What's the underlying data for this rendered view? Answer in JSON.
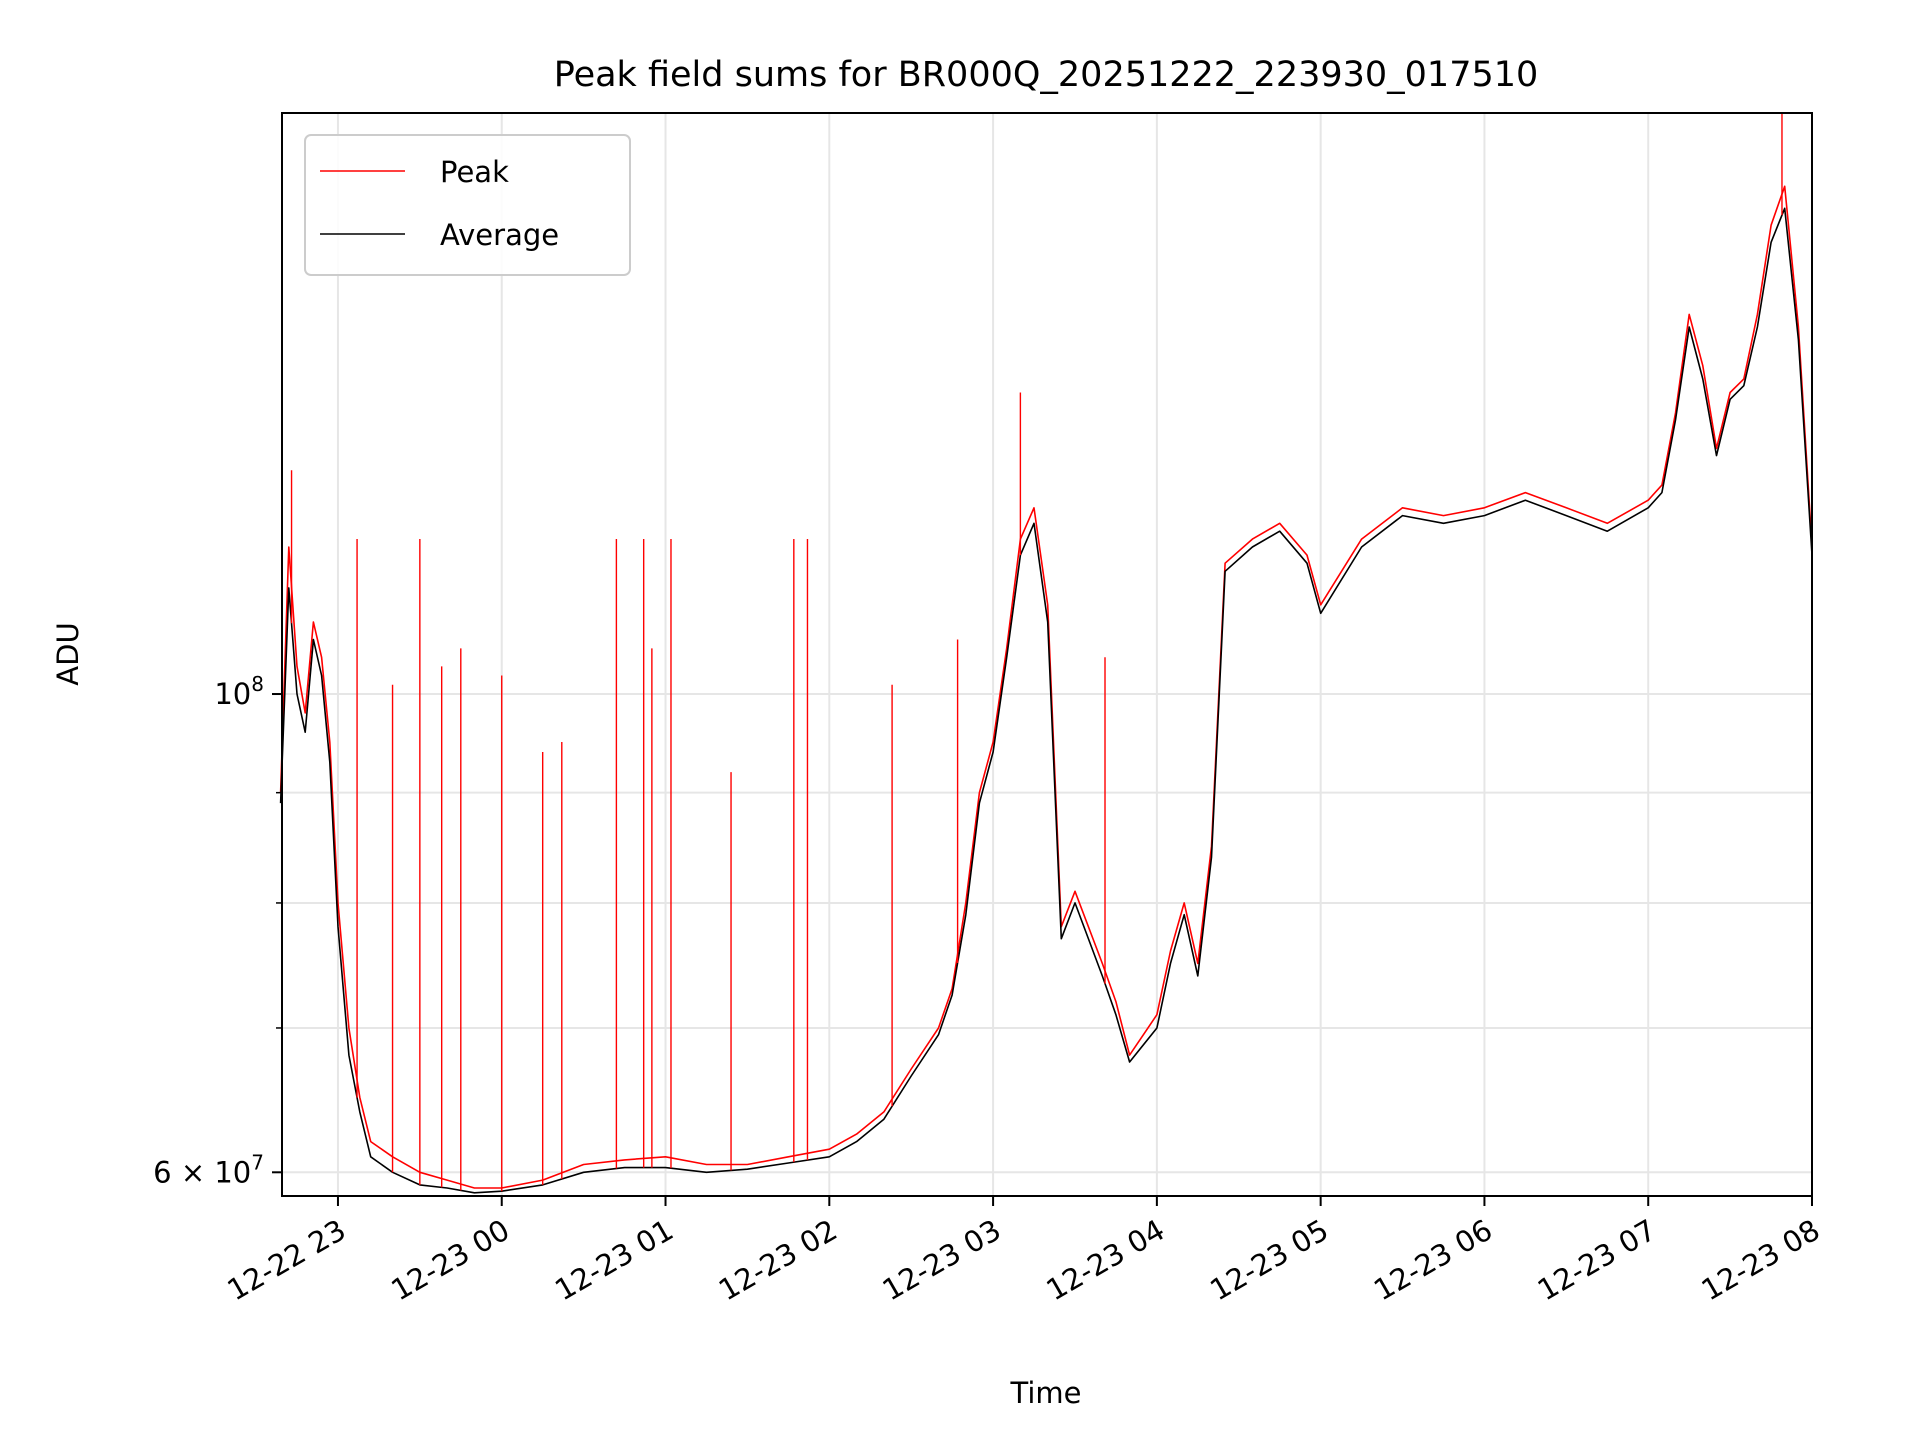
{
  "chart_data": {
    "type": "line",
    "title": "Peak field sums for BR000Q_20251222_223930_017510",
    "xlabel": "Time",
    "ylabel": "ADU",
    "y_scale": "log",
    "xlim": [
      "2025-12-22T22:39:30",
      "2025-12-23T08:00:00"
    ],
    "ylim": [
      58500000,
      186000000
    ],
    "x_ticks": [
      {
        "value": "2025-12-22T23:00",
        "label": "12-22 23"
      },
      {
        "value": "2025-12-23T00:00",
        "label": "12-23 00"
      },
      {
        "value": "2025-12-23T01:00",
        "label": "12-23 01"
      },
      {
        "value": "2025-12-23T02:00",
        "label": "12-23 02"
      },
      {
        "value": "2025-12-23T03:00",
        "label": "12-23 03"
      },
      {
        "value": "2025-12-23T04:00",
        "label": "12-23 04"
      },
      {
        "value": "2025-12-23T05:00",
        "label": "12-23 05"
      },
      {
        "value": "2025-12-23T06:00",
        "label": "12-23 06"
      },
      {
        "value": "2025-12-23T07:00",
        "label": "12-23 07"
      },
      {
        "value": "2025-12-23T08:00",
        "label": "12-23 08"
      }
    ],
    "y_major_ticks": [
      {
        "value": 60000000,
        "label_base": "6 × 10",
        "label_exp": "7"
      },
      {
        "value": 100000000,
        "label_base": "10",
        "label_exp": "8"
      }
    ],
    "y_minor_ticks": [
      70000000,
      80000000,
      90000000
    ],
    "grid": true,
    "legend_position": "upper-left",
    "series": [
      {
        "name": "Peak",
        "color": "#ff0000",
        "x": [
          "2025-12-22T22:39",
          "2025-12-22T22:42",
          "2025-12-22T22:45",
          "2025-12-22T22:48",
          "2025-12-22T22:51",
          "2025-12-22T22:54",
          "2025-12-22T22:57",
          "2025-12-22T23:00",
          "2025-12-22T23:04",
          "2025-12-22T23:08",
          "2025-12-22T23:12",
          "2025-12-22T23:20",
          "2025-12-22T23:30",
          "2025-12-22T23:40",
          "2025-12-22T23:50",
          "2025-12-23T00:00",
          "2025-12-23T00:15",
          "2025-12-23T00:30",
          "2025-12-23T00:45",
          "2025-12-23T01:00",
          "2025-12-23T01:15",
          "2025-12-23T01:30",
          "2025-12-23T01:45",
          "2025-12-23T02:00",
          "2025-12-23T02:10",
          "2025-12-23T02:20",
          "2025-12-23T02:30",
          "2025-12-23T02:40",
          "2025-12-23T02:45",
          "2025-12-23T02:50",
          "2025-12-23T02:55",
          "2025-12-23T03:00",
          "2025-12-23T03:05",
          "2025-12-23T03:10",
          "2025-12-23T03:15",
          "2025-12-23T03:20",
          "2025-12-23T03:25",
          "2025-12-23T03:30",
          "2025-12-23T03:40",
          "2025-12-23T03:45",
          "2025-12-23T03:50",
          "2025-12-23T04:00",
          "2025-12-23T04:05",
          "2025-12-23T04:10",
          "2025-12-23T04:15",
          "2025-12-23T04:20",
          "2025-12-23T04:25",
          "2025-12-23T04:35",
          "2025-12-23T04:45",
          "2025-12-23T04:55",
          "2025-12-23T05:00",
          "2025-12-23T05:15",
          "2025-12-23T05:30",
          "2025-12-23T05:45",
          "2025-12-23T06:00",
          "2025-12-23T06:15",
          "2025-12-23T06:30",
          "2025-12-23T06:45",
          "2025-12-23T07:00",
          "2025-12-23T07:05",
          "2025-12-23T07:10",
          "2025-12-23T07:15",
          "2025-12-23T07:20",
          "2025-12-23T07:25",
          "2025-12-23T07:30",
          "2025-12-23T07:35",
          "2025-12-23T07:40",
          "2025-12-23T07:45",
          "2025-12-23T07:50",
          "2025-12-23T07:55",
          "2025-12-23T08:00"
        ],
        "values": [
          90000000,
          117000000,
          103000000,
          98000000,
          108000000,
          104000000,
          95000000,
          80000000,
          70000000,
          65000000,
          62000000,
          61000000,
          60000000,
          59500000,
          59000000,
          59000000,
          59500000,
          60500000,
          60800000,
          61000000,
          60500000,
          60500000,
          61000000,
          61500000,
          62500000,
          64000000,
          67000000,
          70000000,
          73000000,
          80000000,
          90000000,
          95000000,
          105000000,
          118000000,
          122000000,
          110000000,
          78000000,
          81000000,
          75000000,
          72000000,
          68000000,
          71000000,
          76000000,
          80000000,
          75000000,
          85000000,
          115000000,
          118000000,
          120000000,
          116000000,
          110000000,
          118000000,
          122000000,
          121000000,
          122000000,
          124000000,
          122000000,
          120000000,
          123000000,
          125000000,
          135000000,
          150000000,
          142000000,
          130000000,
          138000000,
          140000000,
          150000000,
          165000000,
          172000000,
          148000000,
          117000000
        ]
      },
      {
        "name": "Average",
        "color": "#000000",
        "x": [
          "2025-12-22T22:39",
          "2025-12-22T22:42",
          "2025-12-22T22:45",
          "2025-12-22T22:48",
          "2025-12-22T22:51",
          "2025-12-22T22:54",
          "2025-12-22T22:57",
          "2025-12-22T23:00",
          "2025-12-22T23:04",
          "2025-12-22T23:08",
          "2025-12-22T23:12",
          "2025-12-22T23:20",
          "2025-12-22T23:30",
          "2025-12-22T23:40",
          "2025-12-22T23:50",
          "2025-12-23T00:00",
          "2025-12-23T00:15",
          "2025-12-23T00:30",
          "2025-12-23T00:45",
          "2025-12-23T01:00",
          "2025-12-23T01:15",
          "2025-12-23T01:30",
          "2025-12-23T01:45",
          "2025-12-23T02:00",
          "2025-12-23T02:10",
          "2025-12-23T02:20",
          "2025-12-23T02:30",
          "2025-12-23T02:40",
          "2025-12-23T02:45",
          "2025-12-23T02:50",
          "2025-12-23T02:55",
          "2025-12-23T03:00",
          "2025-12-23T03:05",
          "2025-12-23T03:10",
          "2025-12-23T03:15",
          "2025-12-23T03:20",
          "2025-12-23T03:25",
          "2025-12-23T03:30",
          "2025-12-23T03:40",
          "2025-12-23T03:45",
          "2025-12-23T03:50",
          "2025-12-23T04:00",
          "2025-12-23T04:05",
          "2025-12-23T04:10",
          "2025-12-23T04:15",
          "2025-12-23T04:20",
          "2025-12-23T04:25",
          "2025-12-23T04:35",
          "2025-12-23T04:45",
          "2025-12-23T04:55",
          "2025-12-23T05:00",
          "2025-12-23T05:15",
          "2025-12-23T05:30",
          "2025-12-23T05:45",
          "2025-12-23T06:00",
          "2025-12-23T06:15",
          "2025-12-23T06:30",
          "2025-12-23T06:45",
          "2025-12-23T07:00",
          "2025-12-23T07:05",
          "2025-12-23T07:10",
          "2025-12-23T07:15",
          "2025-12-23T07:20",
          "2025-12-23T07:25",
          "2025-12-23T07:30",
          "2025-12-23T07:35",
          "2025-12-23T07:40",
          "2025-12-23T07:45",
          "2025-12-23T07:50",
          "2025-12-23T07:55",
          "2025-12-23T08:00"
        ],
        "values": [
          89000000,
          112000000,
          100000000,
          96000000,
          106000000,
          102000000,
          93000000,
          78000000,
          68000000,
          64000000,
          61000000,
          60000000,
          59200000,
          59000000,
          58700000,
          58800000,
          59200000,
          60000000,
          60300000,
          60300000,
          60000000,
          60200000,
          60600000,
          61000000,
          62000000,
          63500000,
          66500000,
          69500000,
          72500000,
          79000000,
          89000000,
          94000000,
          104000000,
          116000000,
          120000000,
          108000000,
          77000000,
          80000000,
          74000000,
          71000000,
          67500000,
          70000000,
          75000000,
          79000000,
          74000000,
          84000000,
          114000000,
          117000000,
          119000000,
          115000000,
          109000000,
          117000000,
          121000000,
          120000000,
          121000000,
          123000000,
          121000000,
          119000000,
          122000000,
          124000000,
          134000000,
          148000000,
          140000000,
          129000000,
          137000000,
          139000000,
          148000000,
          162000000,
          168000000,
          146000000,
          116000000
        ]
      }
    ],
    "spikes": [
      {
        "x": "2025-12-22T22:43",
        "value": 127000000
      },
      {
        "x": "2025-12-22T23:07",
        "value": 118000000
      },
      {
        "x": "2025-12-22T23:20",
        "value": 101000000
      },
      {
        "x": "2025-12-22T23:30",
        "value": 118000000
      },
      {
        "x": "2025-12-22T23:38",
        "value": 103000000
      },
      {
        "x": "2025-12-22T23:45",
        "value": 105000000
      },
      {
        "x": "2025-12-23T00:00",
        "value": 102000000
      },
      {
        "x": "2025-12-23T00:15",
        "value": 94000000
      },
      {
        "x": "2025-12-23T00:22",
        "value": 95000000
      },
      {
        "x": "2025-12-23T00:42",
        "value": 118000000
      },
      {
        "x": "2025-12-23T00:52",
        "value": 118000000
      },
      {
        "x": "2025-12-23T00:55",
        "value": 105000000
      },
      {
        "x": "2025-12-23T01:02",
        "value": 118000000
      },
      {
        "x": "2025-12-23T01:24",
        "value": 92000000
      },
      {
        "x": "2025-12-23T01:47",
        "value": 118000000
      },
      {
        "x": "2025-12-23T01:52",
        "value": 118000000
      },
      {
        "x": "2025-12-23T02:23",
        "value": 101000000
      },
      {
        "x": "2025-12-23T02:47",
        "value": 106000000
      },
      {
        "x": "2025-12-23T03:10",
        "value": 138000000
      },
      {
        "x": "2025-12-23T03:41",
        "value": 104000000
      },
      {
        "x": "2025-12-23T07:49",
        "value": 186000000
      }
    ]
  }
}
